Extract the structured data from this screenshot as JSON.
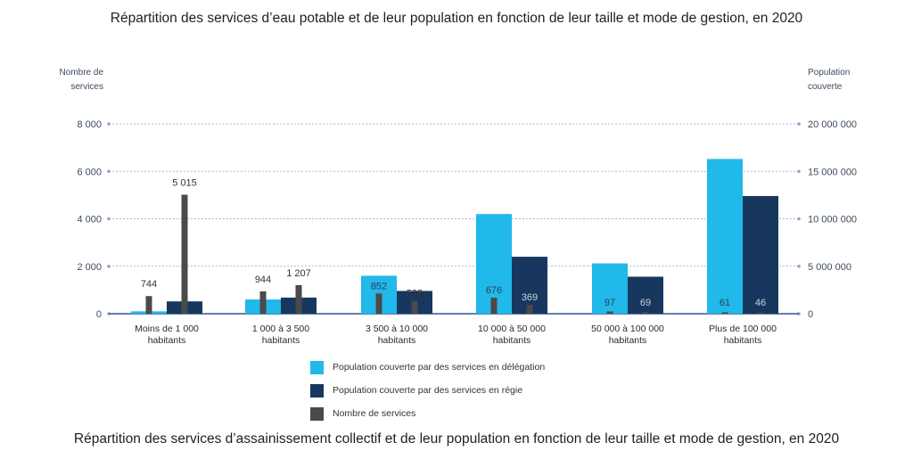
{
  "top_title": "Répartition des services d’eau potable et de leur population en fonction de leur taille et mode de gestion, en 2020",
  "bottom_title": "Répartition des services d’assainissement collectif et de leur population en fonction de leur taille et mode de gestion, en 2020",
  "colors": {
    "delegation": "#21b8ea",
    "regie": "#17375e",
    "services": "#4a4a4a",
    "grid": "#8fa0d4",
    "axis_text": "#3c4b5c"
  },
  "chart_data": {
    "type": "bar",
    "title": "Répartition des services d’eau potable et de leur population en fonction de leur taille et mode de gestion, en 2020",
    "ylabel_left": "Nombre de services",
    "ylabel_right": "Population couverte",
    "ylim_left": [
      0,
      8000
    ],
    "ylim_right": [
      0,
      20000000
    ],
    "left_ticks": [
      "0",
      "2 000",
      "4 000",
      "6 000",
      "8 000"
    ],
    "right_ticks": [
      "0",
      "5 000 000",
      "10 000 000",
      "15 000 000",
      "20 000 000"
    ],
    "grid": true,
    "categories": [
      [
        "Moins de 1 000",
        "habitants"
      ],
      [
        "1 000 à 3 500",
        "habitants"
      ],
      [
        "3 500 à 10 000",
        "habitants"
      ],
      [
        "10 000 à 50 000",
        "habitants"
      ],
      [
        "50 000 à 100 000",
        "habitants"
      ],
      [
        "Plus de 100 000",
        "habitants"
      ]
    ],
    "series": [
      {
        "name": "Population couverte par des services en délégation",
        "axis": "right",
        "values": [
          250000,
          1500000,
          4000000,
          10500000,
          5300000,
          16300000
        ],
        "labels": [
          "744",
          "944",
          "852",
          "676",
          "97",
          "61"
        ]
      },
      {
        "name": "Population couverte par des services en régie",
        "axis": "right",
        "values": [
          1300000,
          1700000,
          2400000,
          6000000,
          3900000,
          12400000
        ],
        "labels": [
          "",
          "",
          "538",
          "369",
          "69",
          "46"
        ]
      },
      {
        "name": "Nombre de services",
        "axis": "left",
        "values": [
          744,
          944,
          852,
          676,
          97,
          61
        ],
        "secondary_values": [
          5015,
          1207,
          538,
          369,
          69,
          46
        ],
        "labels": [
          "744",
          "944",
          "852",
          "676",
          "97",
          "61"
        ],
        "secondary_labels": [
          "5 015",
          "1 207",
          "538",
          "369",
          "69",
          "46"
        ]
      }
    ],
    "legend": [
      "Population couverte par des services en délégation",
      "Population couverte par des services en régie",
      "Nombre de services"
    ],
    "legend_position": "bottom-center"
  }
}
